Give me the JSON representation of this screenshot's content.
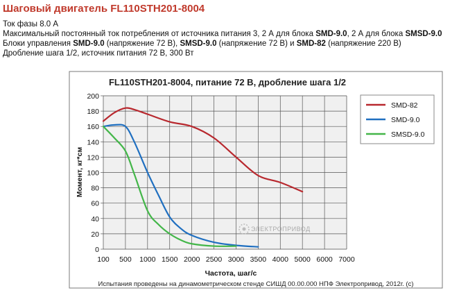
{
  "page": {
    "title": "Шаговый двигатель FL110STH201-8004",
    "spec_lines": [
      [
        {
          "t": "Ток фазы 8.0 А",
          "b": false
        }
      ],
      [
        {
          "t": "Максимальный постоянный ток потребления от источника питания 3, 2 А для блока ",
          "b": false
        },
        {
          "t": "SMD-9.0",
          "b": true
        },
        {
          "t": ", 2 А для блока ",
          "b": false
        },
        {
          "t": "SMSD-9.0",
          "b": true
        }
      ],
      [
        {
          "t": "Блоки управления ",
          "b": false
        },
        {
          "t": "SMD-9.0",
          "b": true
        },
        {
          "t": " (напряжение 72 В), ",
          "b": false
        },
        {
          "t": "SMSD-9.0",
          "b": true
        },
        {
          "t": " (напряжение 72 В) и ",
          "b": false
        },
        {
          "t": "SMD-82",
          "b": true
        },
        {
          "t": " (напряжение 220 В)",
          "b": false
        }
      ],
      [
        {
          "t": "Дробление шага 1/2, источник питания  72 В, 300 Вт",
          "b": false
        }
      ]
    ],
    "watermark": "ЭЛЕКТРОПРИВОД",
    "caption": "Испытания проведены на динамометрическом стенде СИШД 00.00.000 НПФ Электропривод, 2012г. (с)"
  },
  "chart_data": {
    "type": "line",
    "title": "FL110STH201-8004, питание 72 В, дробление шага 1/2",
    "xlabel": "Частота, шаг/с",
    "ylabel": "Момент, кг*см",
    "x_ticks": [
      100,
      500,
      1000,
      1500,
      2000,
      2500,
      3000,
      3500,
      4000,
      5000,
      6000,
      7000
    ],
    "y_ticks": [
      0,
      20,
      40,
      60,
      80,
      100,
      120,
      140,
      160,
      180,
      200
    ],
    "ylim": [
      0,
      200
    ],
    "grid": true,
    "legend_position": "right",
    "series": [
      {
        "name": "SMD-82",
        "color": "#b8282e",
        "points": [
          [
            100,
            167
          ],
          [
            300,
            178
          ],
          [
            500,
            184
          ],
          [
            700,
            182
          ],
          [
            1000,
            176
          ],
          [
            1500,
            166
          ],
          [
            2000,
            160
          ],
          [
            2500,
            145
          ],
          [
            3000,
            120
          ],
          [
            3500,
            96
          ],
          [
            4000,
            87
          ],
          [
            5000,
            75
          ]
        ]
      },
      {
        "name": "SMD-9.0",
        "color": "#1f6fc0",
        "points": [
          [
            100,
            160
          ],
          [
            300,
            162
          ],
          [
            500,
            160
          ],
          [
            700,
            140
          ],
          [
            1000,
            100
          ],
          [
            1250,
            70
          ],
          [
            1500,
            42
          ],
          [
            1750,
            27
          ],
          [
            2000,
            18
          ],
          [
            2500,
            9
          ],
          [
            3000,
            5
          ],
          [
            3500,
            3
          ]
        ]
      },
      {
        "name": "SMSD-9.0",
        "color": "#43b649",
        "points": [
          [
            100,
            160
          ],
          [
            300,
            145
          ],
          [
            500,
            128
          ],
          [
            700,
            98
          ],
          [
            1000,
            50
          ],
          [
            1250,
            32
          ],
          [
            1500,
            20
          ],
          [
            1750,
            12
          ],
          [
            2000,
            7
          ],
          [
            2500,
            4
          ],
          [
            3000,
            4
          ]
        ]
      }
    ]
  }
}
